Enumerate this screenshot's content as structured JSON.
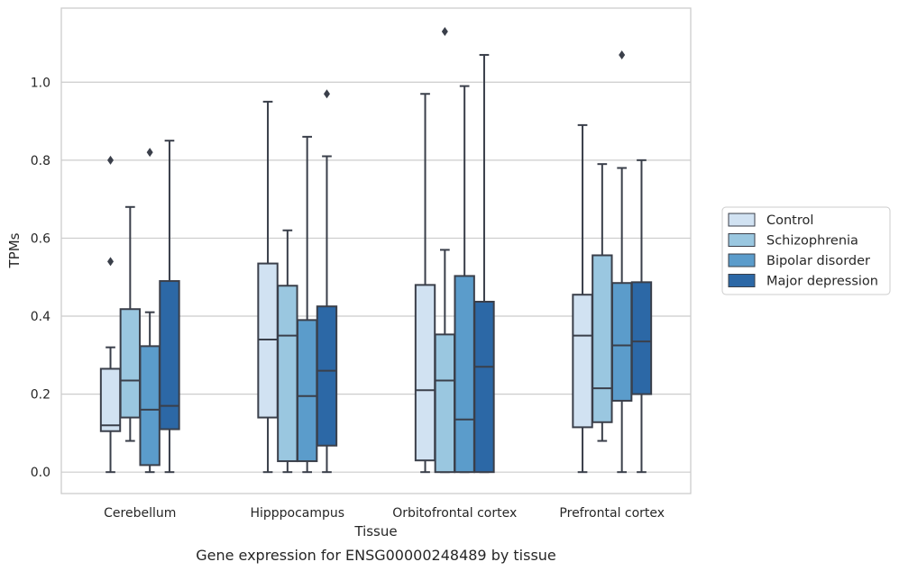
{
  "caption": "Gene expression for ENSG00000248489 by tissue",
  "chart_data": {
    "type": "box",
    "xlabel": "Tissue",
    "ylabel": "TPMs",
    "ylim": [
      -0.055,
      1.19
    ],
    "yticks": [
      0.0,
      0.2,
      0.4,
      0.6,
      0.8,
      1.0
    ],
    "ytick_labels": [
      "0.0",
      "0.2",
      "0.4",
      "0.6",
      "0.8",
      "1.0"
    ],
    "grid": "horizontal",
    "legend_position": "right",
    "categories": [
      "Cerebellum",
      "Hipppocampus",
      "Orbitofrontal cortex",
      "Prefrontal cortex"
    ],
    "series": [
      {
        "name": "Control",
        "color": "#d1e2f2",
        "boxes": [
          {
            "whislo": 0.0,
            "q1": 0.105,
            "med": 0.12,
            "q3": 0.265,
            "whishi": 0.32,
            "fliers": [
              0.54,
              0.8
            ]
          },
          {
            "whislo": 0.0,
            "q1": 0.14,
            "med": 0.34,
            "q3": 0.535,
            "whishi": 0.95,
            "fliers": []
          },
          {
            "whislo": 0.0,
            "q1": 0.03,
            "med": 0.21,
            "q3": 0.48,
            "whishi": 0.97,
            "fliers": []
          },
          {
            "whislo": 0.0,
            "q1": 0.115,
            "med": 0.35,
            "q3": 0.455,
            "whishi": 0.89,
            "fliers": []
          }
        ]
      },
      {
        "name": "Schizophrenia",
        "color": "#9ac7e0",
        "boxes": [
          {
            "whislo": 0.08,
            "q1": 0.14,
            "med": 0.235,
            "q3": 0.418,
            "whishi": 0.68,
            "fliers": []
          },
          {
            "whislo": 0.0,
            "q1": 0.028,
            "med": 0.35,
            "q3": 0.478,
            "whishi": 0.62,
            "fliers": []
          },
          {
            "whislo": 0.0,
            "q1": 0.0,
            "med": 0.235,
            "q3": 0.353,
            "whishi": 0.57,
            "fliers": [
              1.13
            ]
          },
          {
            "whislo": 0.08,
            "q1": 0.128,
            "med": 0.215,
            "q3": 0.556,
            "whishi": 0.79,
            "fliers": []
          }
        ]
      },
      {
        "name": "Bipolar disorder",
        "color": "#5b9ccb",
        "boxes": [
          {
            "whislo": 0.0,
            "q1": 0.018,
            "med": 0.16,
            "q3": 0.323,
            "whishi": 0.41,
            "fliers": [
              0.82
            ]
          },
          {
            "whislo": 0.0,
            "q1": 0.028,
            "med": 0.195,
            "q3": 0.39,
            "whishi": 0.86,
            "fliers": []
          },
          {
            "whislo": 0.0,
            "q1": 0.0,
            "med": 0.135,
            "q3": 0.503,
            "whishi": 0.99,
            "fliers": []
          },
          {
            "whislo": 0.0,
            "q1": 0.183,
            "med": 0.325,
            "q3": 0.485,
            "whishi": 0.78,
            "fliers": [
              1.07
            ]
          }
        ]
      },
      {
        "name": "Major depression",
        "color": "#2c68a6",
        "boxes": [
          {
            "whislo": 0.0,
            "q1": 0.11,
            "med": 0.17,
            "q3": 0.49,
            "whishi": 0.85,
            "fliers": []
          },
          {
            "whislo": 0.0,
            "q1": 0.068,
            "med": 0.26,
            "q3": 0.425,
            "whishi": 0.81,
            "fliers": [
              0.97
            ]
          },
          {
            "whislo": 0.0,
            "q1": 0.0,
            "med": 0.27,
            "q3": 0.437,
            "whishi": 1.07,
            "fliers": []
          },
          {
            "whislo": 0.0,
            "q1": 0.2,
            "med": 0.335,
            "q3": 0.487,
            "whishi": 0.8,
            "fliers": []
          }
        ]
      }
    ]
  }
}
